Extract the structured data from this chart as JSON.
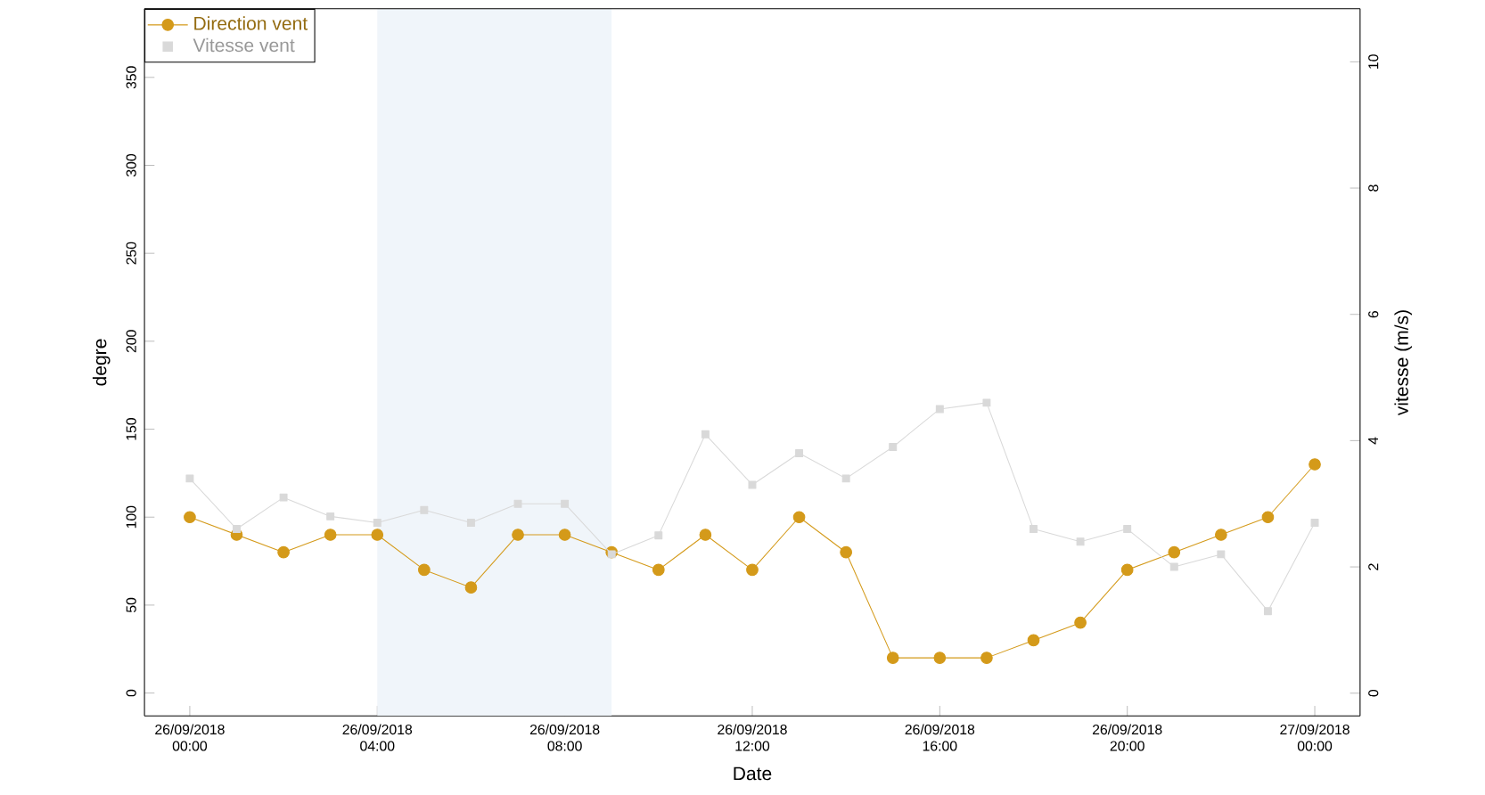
{
  "chart_data": {
    "type": "line",
    "xlabel": "Date",
    "ylabel": "degre",
    "y2label": "vitesse (m/s)",
    "x": [
      "2018-09-26T00:00",
      "2018-09-26T01:00",
      "2018-09-26T02:00",
      "2018-09-26T03:00",
      "2018-09-26T04:00",
      "2018-09-26T05:00",
      "2018-09-26T06:00",
      "2018-09-26T07:00",
      "2018-09-26T08:00",
      "2018-09-26T09:00",
      "2018-09-26T10:00",
      "2018-09-26T11:00",
      "2018-09-26T12:00",
      "2018-09-26T13:00",
      "2018-09-26T14:00",
      "2018-09-26T15:00",
      "2018-09-26T16:00",
      "2018-09-26T17:00",
      "2018-09-26T18:00",
      "2018-09-26T19:00",
      "2018-09-26T20:00",
      "2018-09-26T21:00",
      "2018-09-26T22:00",
      "2018-09-26T23:00",
      "2018-09-27T00:00"
    ],
    "series": [
      {
        "name": "Direction vent",
        "color": "#d49a1a",
        "marker": "circle",
        "values": [
          100,
          90,
          80,
          90,
          90,
          70,
          60,
          90,
          90,
          80,
          70,
          90,
          70,
          100,
          80,
          20,
          20,
          20,
          30,
          40,
          70,
          80,
          90,
          100,
          130
        ]
      },
      {
        "name": "Vitesse vent",
        "color": "#d9d9d9",
        "marker": "square",
        "axis": "y2",
        "values": [
          3.4,
          2.6,
          3.1,
          2.8,
          2.7,
          2.9,
          2.7,
          3.0,
          3.0,
          2.2,
          2.5,
          4.1,
          3.3,
          3.8,
          3.4,
          3.9,
          4.5,
          4.6,
          2.6,
          2.4,
          2.6,
          2.0,
          2.2,
          1.3,
          2.7
        ]
      }
    ],
    "xlim": [
      "2018-09-25T23:02",
      "2018-09-27T00:58"
    ],
    "ylim": [
      -13,
      389
    ],
    "y2lim": [
      -0.36,
      10.84
    ],
    "xticks": [
      {
        "value": "2018-09-26T00:00",
        "label": "26/09/2018 00:00"
      },
      {
        "value": "2018-09-26T04:00",
        "label": "26/09/2018 04:00"
      },
      {
        "value": "2018-09-26T08:00",
        "label": "26/09/2018 08:00"
      },
      {
        "value": "2018-09-26T12:00",
        "label": "26/09/2018 12:00"
      },
      {
        "value": "2018-09-26T16:00",
        "label": "26/09/2018 16:00"
      },
      {
        "value": "2018-09-26T20:00",
        "label": "26/09/2018 20:00"
      },
      {
        "value": "2018-09-27T00:00",
        "label": "27/09/2018 00:00"
      }
    ],
    "yticks": [
      0,
      50,
      100,
      150,
      200,
      250,
      300,
      350
    ],
    "y2ticks": [
      0,
      2,
      4,
      6,
      8,
      10
    ],
    "bands": [
      {
        "axis": "x",
        "from": "2018-09-26T04:00",
        "to": "2018-09-26T09:00",
        "color": "#f0f5fa"
      }
    ],
    "legend": "top left",
    "grid": false
  }
}
